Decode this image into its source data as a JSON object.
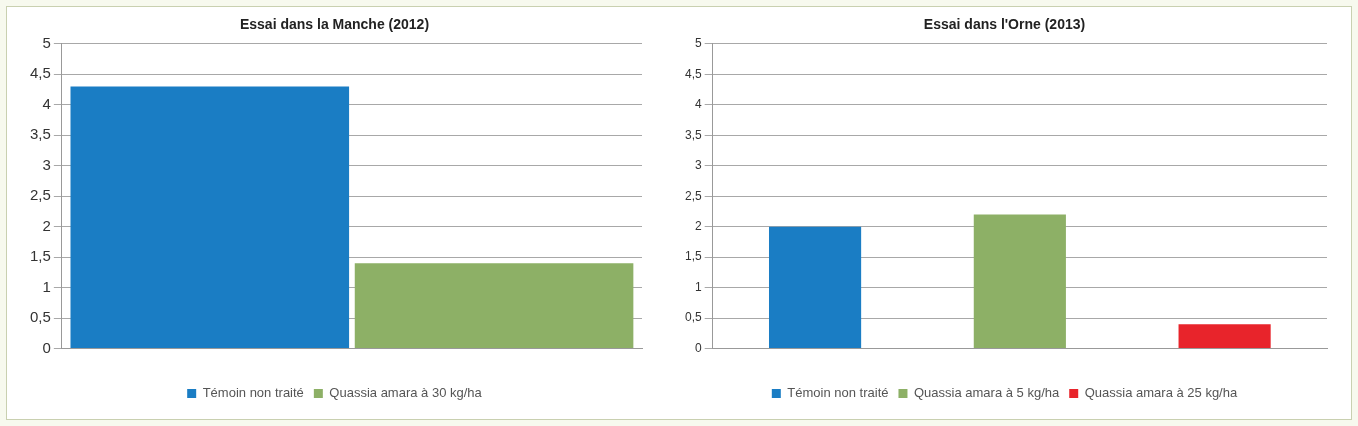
{
  "chart_data": [
    {
      "type": "bar",
      "title": "Essai dans la Manche (2012)",
      "categories": [
        null
      ],
      "series": [
        {
          "name": "Témoin non traité",
          "color": "#1a7dc4",
          "values": [
            4.3
          ]
        },
        {
          "name": "Quassia amara à 30 kg/ha",
          "color": "#8db066",
          "values": [
            1.4
          ]
        }
      ],
      "ylim": [
        0,
        5
      ],
      "yticks": [
        0,
        {
          "value": 0.5,
          "label": "0,5"
        },
        1,
        {
          "value": 1.5,
          "label": "1,5"
        },
        2,
        {
          "value": 2.5,
          "label": "2,5"
        },
        3,
        {
          "value": 3.5,
          "label": "3,5"
        },
        4,
        {
          "value": 4.5,
          "label": "4,5"
        },
        5
      ],
      "grid": "y",
      "legend": "bottom"
    },
    {
      "type": "bar",
      "title": "Essai dans l'Orne (2013)",
      "categories": [
        null,
        null,
        null
      ],
      "series": [
        {
          "name": "Témoin non traité",
          "color": "#1a7dc4",
          "values": [
            2.0,
            null,
            null
          ]
        },
        {
          "name": "Quassia amara à 5 kg/ha",
          "color": "#8db066",
          "values": [
            null,
            2.2,
            null
          ]
        },
        {
          "name": "Quassia amara à 25 kg/ha",
          "color": "#e8242b",
          "values": [
            null,
            null,
            0.4
          ]
        }
      ],
      "ylim": [
        0,
        5
      ],
      "yticks": [
        0,
        {
          "value": 0.5,
          "label": "0,5"
        },
        1,
        {
          "value": 1.5,
          "label": "1,5"
        },
        2,
        {
          "value": 2.5,
          "label": "2,5"
        },
        3,
        {
          "value": 3.5,
          "label": "3,5"
        },
        4,
        {
          "value": 4.5,
          "label": "4,5"
        },
        5
      ],
      "grid": "y",
      "legend": "bottom"
    }
  ]
}
